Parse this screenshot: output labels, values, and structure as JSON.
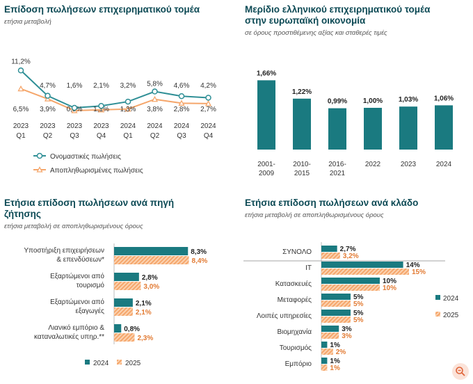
{
  "colors": {
    "teal": "#1a7a80",
    "teal_line": "#2f8f96",
    "orange": "#f5a66b",
    "orange_line": "#f5a66b",
    "title": "#0d4a55"
  },
  "panel1": {
    "title": "Επίδοση πωλήσεων επιχειρηματικού τομέα",
    "subtitle": "ετήσια μεταβολή"
  },
  "panel2": {
    "title_line1": "Μερίδιο ελληνικού επιχειρηματικού τομέα",
    "title_line2": "στην ευρωπαϊκή οικονομία",
    "subtitle": "σε όρους προστιθέμενης αξίας και σταθερές τιμές"
  },
  "panel3": {
    "title_line1": "Ετήσια επίδοση πωλήσεων ανά πηγή",
    "title_line2": "ζήτησης",
    "subtitle": "ετήσια μεταβολή σε αποπληθωρισμένους όρους"
  },
  "panel4": {
    "title": "Ετήσια επίδοση πωλήσεων ανά κλάδο",
    "subtitle": "ετήσια μεταβολή σε αποπληθωρισμένους όρους"
  },
  "chart_data": [
    {
      "type": "line",
      "x": [
        "2023 Q1",
        "2023 Q2",
        "2023 Q3",
        "2023 Q4",
        "2024 Q1",
        "2024 Q2",
        "2024 Q3",
        "2024 Q4"
      ],
      "x_top": [
        "2023",
        "2023",
        "2023",
        "2023",
        "2024",
        "2024",
        "2024",
        "2024"
      ],
      "x_bottom": [
        "Q1",
        "Q2",
        "Q3",
        "Q4",
        "Q1",
        "Q2",
        "Q3",
        "Q4"
      ],
      "series": [
        {
          "name": "Ονομαστικές πωλήσεις",
          "values": [
            11.2,
            4.7,
            1.6,
            2.1,
            3.2,
            5.8,
            4.6,
            4.2
          ],
          "labels": [
            "11,2%",
            "4,7%",
            "1,6%",
            "2,1%",
            "3,2%",
            "5,8%",
            "4,6%",
            "4,2%"
          ]
        },
        {
          "name": "Αποπληθωρισμένες πωλήσεις",
          "values": [
            6.5,
            3.9,
            0.9,
            1.1,
            1.3,
            3.8,
            2.8,
            2.7
          ],
          "labels": [
            "6,5%",
            "3,9%",
            "0,9%",
            "1,1%",
            "1,3%",
            "3,8%",
            "2,8%",
            "2,7%"
          ]
        }
      ]
    },
    {
      "type": "bar",
      "categories_line1": [
        "2001-",
        "2010-",
        "2016-",
        "2022",
        "2023",
        "2024"
      ],
      "categories_line2": [
        "2009",
        "2015",
        "2021",
        "",
        "",
        ""
      ],
      "values": [
        1.66,
        1.22,
        0.99,
        1.0,
        1.03,
        1.06
      ],
      "labels": [
        "1,66%",
        "1,22%",
        "0,99%",
        "1,00%",
        "1,03%",
        "1,06%"
      ]
    },
    {
      "type": "bar",
      "orientation": "horizontal",
      "categories": [
        [
          "Υποστήριξη επιχειρήσεων",
          "& επενδύσεων*"
        ],
        [
          "Εξαρτώμενοι από",
          "τουρισμό"
        ],
        [
          "Εξαρτώμενοι από",
          "εξαγωγές"
        ],
        [
          "Λιανικό εμπόριο &",
          "καταναλωτικές υπηρ.**"
        ]
      ],
      "series": [
        {
          "name": "2024",
          "values": [
            8.3,
            2.8,
            2.1,
            0.8
          ],
          "labels": [
            "8,3%",
            "2,8%",
            "2,1%",
            "0,8%"
          ]
        },
        {
          "name": "2025",
          "values": [
            8.4,
            3.0,
            2.1,
            2.3
          ],
          "labels": [
            "8,4%",
            "3,0%",
            "2,1%",
            "2,3%"
          ]
        }
      ]
    },
    {
      "type": "bar",
      "orientation": "horizontal",
      "categories": [
        "ΣΥΝΟΛΟ",
        "IT",
        "Κατασκευές",
        "Μεταφορές",
        "Λοιπές υπηρεσίες",
        "Βιομηχανία",
        "Τουρισμός",
        "Εμπόριο"
      ],
      "series": [
        {
          "name": "2024",
          "values": [
            2.7,
            14,
            10,
            5,
            5,
            3,
            1,
            1
          ],
          "labels": [
            "2,7%",
            "14%",
            "10%",
            "5%",
            "5%",
            "3%",
            "1%",
            "1%"
          ]
        },
        {
          "name": "2025",
          "values": [
            3.2,
            15,
            10,
            5,
            5,
            3,
            2,
            1
          ],
          "labels": [
            "3,2%",
            "15%",
            "10%",
            "5%",
            "5%",
            "3%",
            "2%",
            "1%"
          ]
        }
      ]
    }
  ]
}
